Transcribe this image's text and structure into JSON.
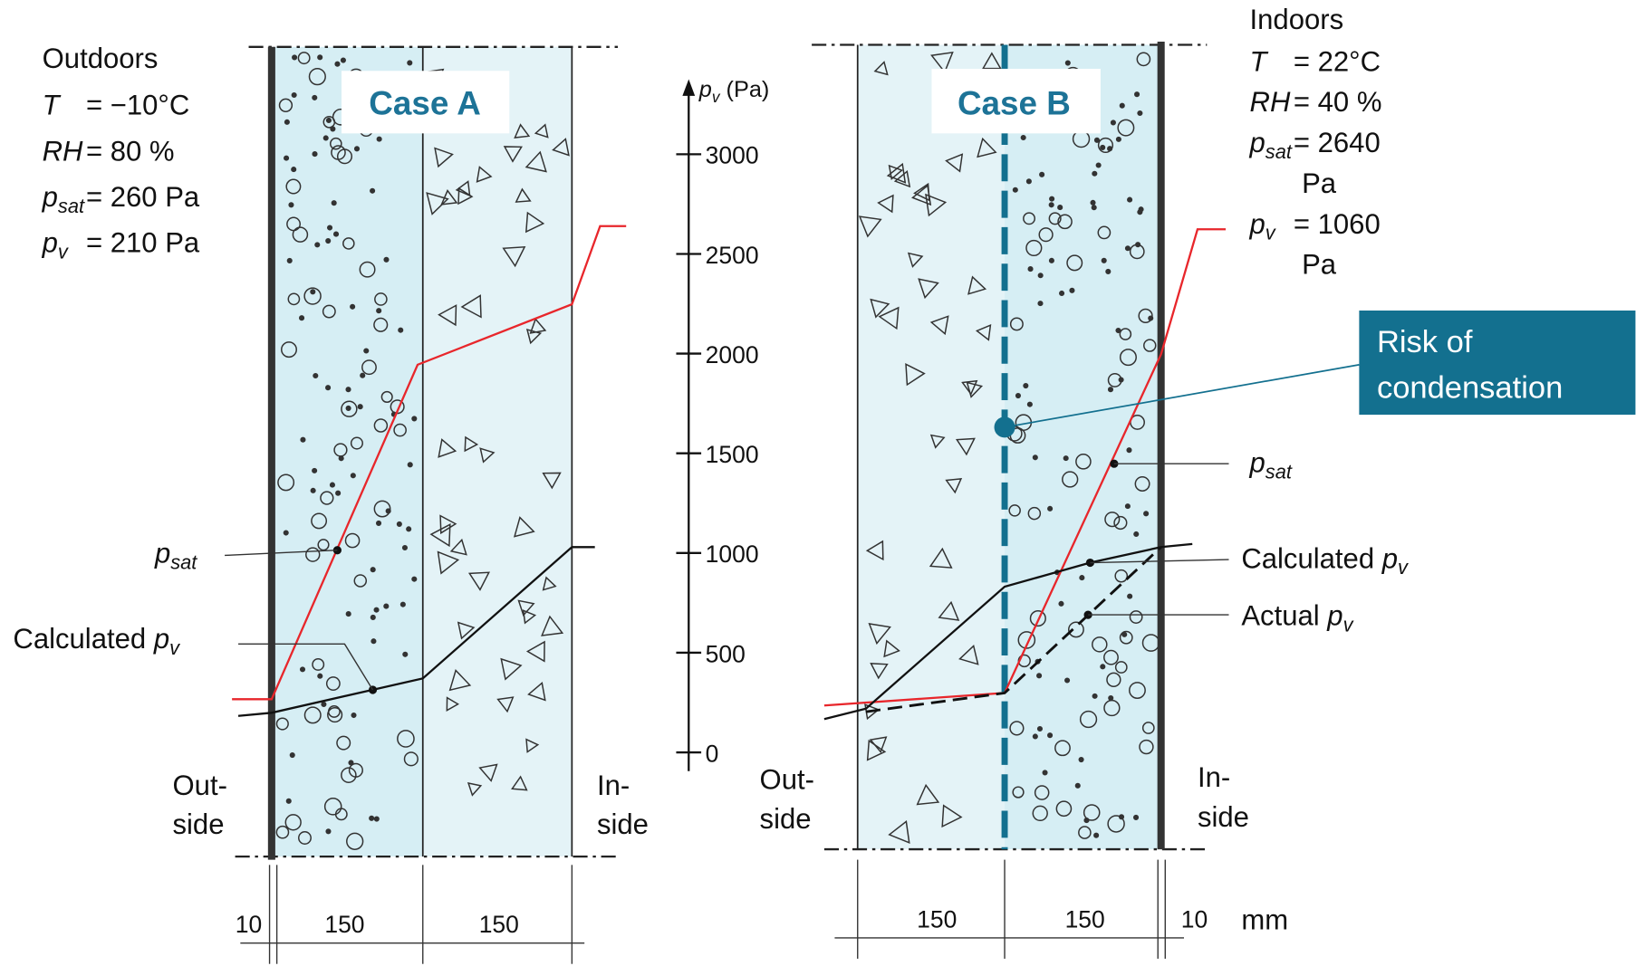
{
  "case_a": {
    "title": "Case A",
    "outdoors": {
      "heading": "Outdoors",
      "rows": [
        {
          "symbol": "T",
          "value": "= −10°C"
        },
        {
          "symbol": "RH",
          "value": "= 80 %"
        },
        {
          "symbol": "p",
          "sub": "sat",
          "value": "= 260 Pa"
        },
        {
          "symbol": "p",
          "sub": "v",
          "value": "= 210 Pa"
        }
      ]
    },
    "psat_label": {
      "symbol": "p",
      "sub": "sat"
    },
    "calc_label": {
      "text": "Calculated",
      "symbol": "p",
      "sub": "v"
    },
    "outside": [
      "Out-",
      "side"
    ],
    "inside": [
      "In-",
      "side"
    ],
    "dimensions": [
      "10",
      "150",
      "150"
    ]
  },
  "axis": {
    "symbol": "p",
    "sub": "v",
    "unit": "(Pa)",
    "ticks": [
      3000,
      2500,
      2000,
      1500,
      1000,
      500,
      0
    ]
  },
  "case_b": {
    "title": "Case B",
    "indoors": {
      "heading": "Indoors",
      "rows": [
        {
          "symbol": "T",
          "value": "= 22°C"
        },
        {
          "symbol": "RH",
          "value": "= 40 %"
        },
        {
          "symbol": "p",
          "sub": "sat",
          "value": "= 2640",
          "cont": "Pa"
        },
        {
          "symbol": "p",
          "sub": "v",
          "value": "= 1060",
          "cont": "Pa"
        }
      ]
    },
    "callout": [
      "Risk of",
      "condensation"
    ],
    "psat_label": {
      "symbol": "p",
      "sub": "sat"
    },
    "calc_label": {
      "text": "Calculated",
      "symbol": "p",
      "sub": "v"
    },
    "actual_label": {
      "text": "Actual",
      "symbol": "p",
      "sub": "v"
    },
    "outside": [
      "Out-",
      "side"
    ],
    "inside": [
      "In-",
      "side"
    ],
    "dimensions": [
      "150",
      "150",
      "10"
    ],
    "unit": "mm"
  }
}
